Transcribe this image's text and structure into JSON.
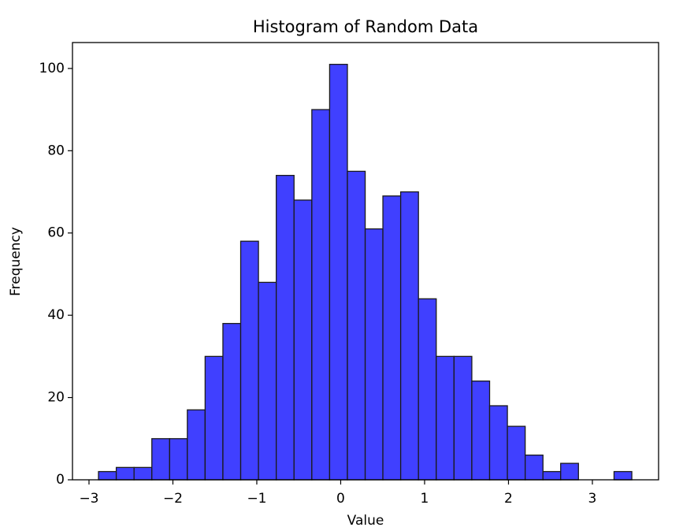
{
  "chart_data": {
    "type": "histogram",
    "title": "Histogram of Random Data",
    "xlabel": "Value",
    "ylabel": "Frequency",
    "bins": [
      -2.887,
      -2.675,
      -2.463,
      -2.251,
      -2.039,
      -1.828,
      -1.616,
      -1.404,
      -1.192,
      -0.98,
      -0.768,
      -0.556,
      -0.344,
      -0.132,
      0.08,
      0.292,
      0.503,
      0.715,
      0.927,
      1.139,
      1.351,
      1.563,
      1.775,
      1.987,
      2.199,
      2.411,
      2.622,
      2.834,
      3.046,
      3.258,
      3.47
    ],
    "values": [
      2,
      3,
      3,
      10,
      10,
      17,
      30,
      38,
      58,
      48,
      74,
      68,
      90,
      101,
      75,
      61,
      69,
      70,
      44,
      30,
      30,
      24,
      18,
      13,
      6,
      2,
      4,
      0,
      0,
      2
    ],
    "color": "#4040ff",
    "edgecolor": "#1a1a1a",
    "xlim": [
      -3.197,
      3.789
    ],
    "ylim": [
      0,
      106.3
    ],
    "xticks": [
      {
        "value": -3,
        "label": "−3"
      },
      {
        "value": -2,
        "label": "−2"
      },
      {
        "value": -1,
        "label": "−1"
      },
      0,
      1,
      2,
      3
    ],
    "yticks": [
      0,
      20,
      40,
      60,
      80,
      100
    ]
  }
}
